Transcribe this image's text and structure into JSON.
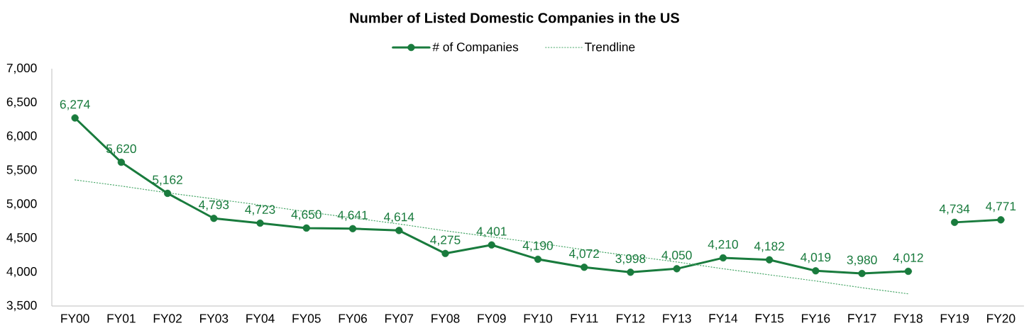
{
  "chart_data": {
    "type": "line",
    "title": "Number of Listed Domestic Companies in the US",
    "categories": [
      "FY00",
      "FY01",
      "FY02",
      "FY03",
      "FY04",
      "FY05",
      "FY06",
      "FY07",
      "FY08",
      "FY09",
      "FY10",
      "FY11",
      "FY12",
      "FY13",
      "FY14",
      "FY15",
      "FY16",
      "FY17",
      "FY18",
      "FY19",
      "FY20"
    ],
    "series": [
      {
        "name": "# of Companies",
        "color": "#197b3d",
        "values": [
          6274,
          5620,
          5162,
          4793,
          4723,
          4650,
          4641,
          4614,
          4275,
          4401,
          4190,
          4072,
          3998,
          4050,
          4210,
          4182,
          4019,
          3980,
          4012,
          null,
          null
        ],
        "value_labels": [
          "6,274",
          "5,620",
          "5,162",
          "4,793",
          "4,723",
          "4,650",
          "4,641",
          "4,614",
          "4,275",
          "4,401",
          "4,190",
          "4,072",
          "3,998",
          "4,050",
          "4,210",
          "4,182",
          "4,019",
          "3,980",
          "4,012",
          null,
          null
        ]
      },
      {
        "color": "#197b3d",
        "values": [
          null,
          null,
          null,
          null,
          null,
          null,
          null,
          null,
          null,
          null,
          null,
          null,
          null,
          null,
          null,
          null,
          null,
          null,
          null,
          4734,
          4771
        ],
        "value_labels": [
          null,
          null,
          null,
          null,
          null,
          null,
          null,
          null,
          null,
          null,
          null,
          null,
          null,
          null,
          null,
          null,
          null,
          null,
          null,
          "4,734",
          "4,771"
        ]
      },
      {
        "name": "Trendline",
        "color": "#4aa86a",
        "marker": "none",
        "line_style": "dotted",
        "values": [
          5360,
          5270,
          5170,
          5080,
          4990,
          4890,
          4800,
          4710,
          4610,
          4520,
          4430,
          4330,
          4240,
          4150,
          4050,
          3960,
          3870,
          3770,
          3680,
          null,
          null
        ]
      }
    ],
    "ylim": [
      3500,
      7000
    ],
    "yticks": [
      {
        "value": 3500,
        "label": "3,500"
      },
      {
        "value": 4000,
        "label": "4,000"
      },
      {
        "value": 4500,
        "label": "4,500"
      },
      {
        "value": 5000,
        "label": "5,000"
      },
      {
        "value": 5500,
        "label": "5,500"
      },
      {
        "value": 6000,
        "label": "6,000"
      },
      {
        "value": 6500,
        "label": "6,500"
      },
      {
        "value": 7000,
        "label": "7,000"
      }
    ],
    "legend": "top",
    "marker": "circle",
    "line_style": "solid"
  }
}
